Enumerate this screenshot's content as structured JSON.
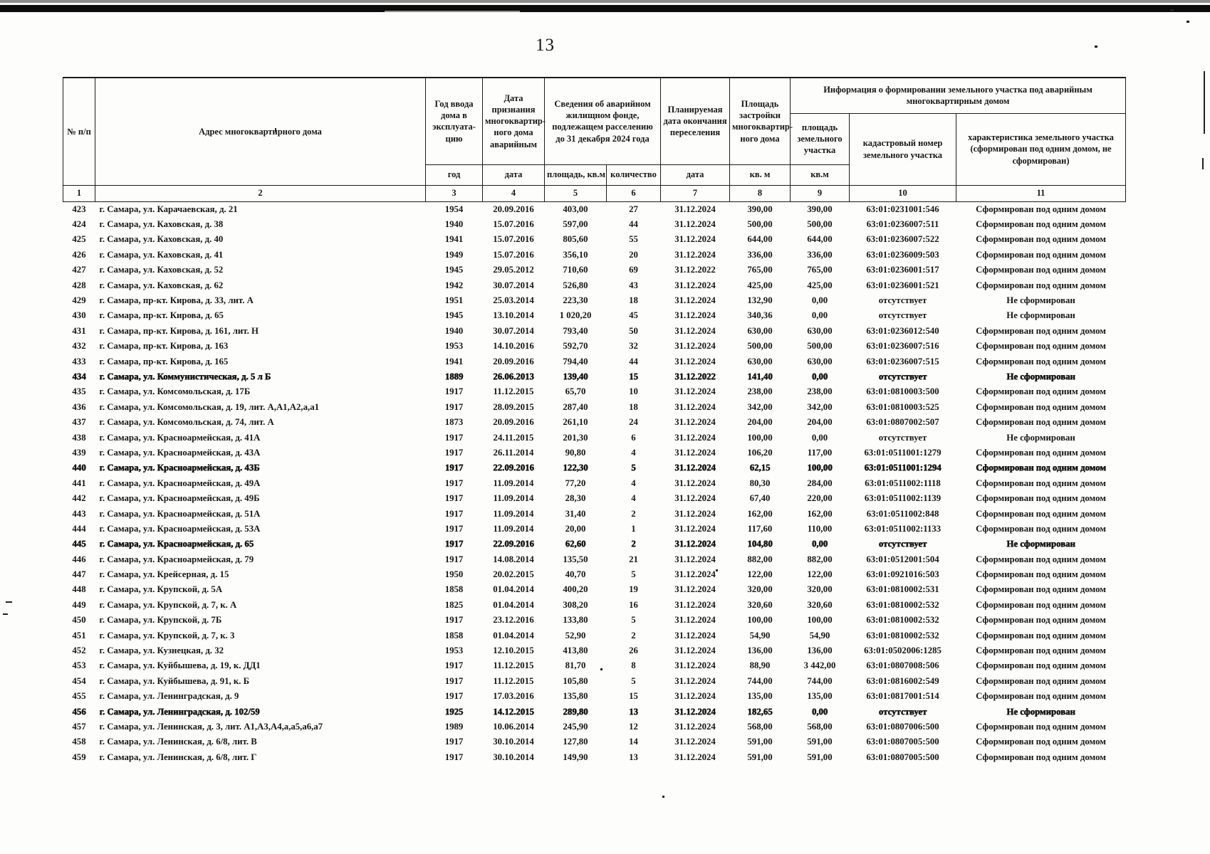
{
  "page": {
    "number": "13"
  },
  "table": {
    "header": {
      "col1": "№ п/п",
      "col2": "Адрес многоквартирного дома",
      "col3": "Год ввода дома в эксплуата-цию",
      "col4": "Дата признания многоквартир-ного дома аварийным",
      "group56": "Сведения об аварийном жилищном фонде, подлежащем расселению до 31 декабря 2024 года",
      "col7": "Планируемая дата окончания переселения",
      "col8": "Площадь застройки многоквартир-ного дома",
      "group911": "Информация о формировании земельного участка под аварийным многоквартирным домом",
      "col9": "площадь земельного участка",
      "col10": "кадастровый номер земельного участка",
      "col11": "характеристика земельного участка (сформирован под одним домом, не сформирован)",
      "units": {
        "col3": "год",
        "col4": "дата",
        "col5": "площадь, кв.м",
        "col6": "количество",
        "col7": "дата",
        "col8": "кв. м",
        "col9": "кв.м"
      },
      "numbers": [
        "1",
        "2",
        "3",
        "4",
        "5",
        "6",
        "7",
        "8",
        "9",
        "10",
        "11"
      ]
    },
    "column_names": [
      "row-number",
      "address",
      "year-built",
      "date-declared-emergency",
      "area-to-resettle",
      "unit-count",
      "resettlement-deadline",
      "building-footprint-area",
      "land-plot-area",
      "cadastral-number",
      "land-plot-status"
    ],
    "bold_rows": [
      "434",
      "440",
      "445",
      "456"
    ],
    "rows": [
      [
        "423",
        "г. Самара, ул. Карачаевская, д. 21",
        "1954",
        "20.09.2016",
        "403,00",
        "27",
        "31.12.2024",
        "390,00",
        "390,00",
        "63:01:0231001:546",
        "Сформирован под одним домом"
      ],
      [
        "424",
        "г. Самара, ул. Каховская, д. 38",
        "1940",
        "15.07.2016",
        "597,00",
        "44",
        "31.12.2024",
        "500,00",
        "500,00",
        "63:01:0236007:511",
        "Сформирован под одним домом"
      ],
      [
        "425",
        "г. Самара, ул. Каховская, д. 40",
        "1941",
        "15.07.2016",
        "805,60",
        "55",
        "31.12.2024",
        "644,00",
        "644,00",
        "63:01:0236007:522",
        "Сформирован под одним домом"
      ],
      [
        "426",
        "г. Самара, ул. Каховская, д. 41",
        "1949",
        "15.07.2016",
        "356,10",
        "20",
        "31.12.2024",
        "336,00",
        "336,00",
        "63:01:0236009:503",
        "Сформирован под одним домом"
      ],
      [
        "427",
        "г. Самара, ул. Каховская, д. 52",
        "1945",
        "29.05.2012",
        "710,60",
        "69",
        "31.12.2022",
        "765,00",
        "765,00",
        "63:01:0236001:517",
        "Сформирован под одним домом"
      ],
      [
        "428",
        "г. Самара, ул. Каховская, д. 62",
        "1942",
        "30.07.2014",
        "526,80",
        "43",
        "31.12.2024",
        "425,00",
        "425,00",
        "63:01:0236001:521",
        "Сформирован под одним домом"
      ],
      [
        "429",
        "г. Самара, пр-кт. Кирова, д. 33, лит. А",
        "1951",
        "25.03.2014",
        "223,30",
        "18",
        "31.12.2024",
        "132,90",
        "0,00",
        "отсутствует",
        "Не сформирован"
      ],
      [
        "430",
        "г. Самара, пр-кт. Кирова, д. 65",
        "1945",
        "13.10.2014",
        "1 020,20",
        "45",
        "31.12.2024",
        "340,36",
        "0,00",
        "отсутствует",
        "Не сформирован"
      ],
      [
        "431",
        "г. Самара, пр-кт. Кирова, д. 161, лит. Н",
        "1940",
        "30.07.2014",
        "793,40",
        "50",
        "31.12.2024",
        "630,00",
        "630,00",
        "63:01:0236012:540",
        "Сформирован под одним домом"
      ],
      [
        "432",
        "г. Самара, пр-кт. Кирова, д. 163",
        "1953",
        "14.10.2016",
        "592,70",
        "32",
        "31.12.2024",
        "500,00",
        "500,00",
        "63:01:0236007:516",
        "Сформирован под одним домом"
      ],
      [
        "433",
        "г. Самара, пр-кт. Кирова, д. 165",
        "1941",
        "20.09.2016",
        "794,40",
        "44",
        "31.12.2024",
        "630,00",
        "630,00",
        "63:01:0236007:515",
        "Сформирован под одним домом"
      ],
      [
        "434",
        "г. Самара, ул. Коммунистическая, д. 5 л Б",
        "1889",
        "26.06.2013",
        "139,40",
        "15",
        "31.12.2022",
        "141,40",
        "0,00",
        "отсутствует",
        "Не сформирован"
      ],
      [
        "435",
        "г. Самара, ул. Комсомольская, д. 17Б",
        "1917",
        "11.12.2015",
        "65,70",
        "10",
        "31.12.2024",
        "238,00",
        "238,00",
        "63:01:0810003:500",
        "Сформирован под одним домом"
      ],
      [
        "436",
        "г. Самара, ул. Комсомольская, д. 19, лит. А,А1,А2,а,а1",
        "1917",
        "28.09.2015",
        "287,40",
        "18",
        "31.12.2024",
        "342,00",
        "342,00",
        "63:01:0810003:525",
        "Сформирован под одним домом"
      ],
      [
        "437",
        "г. Самара, ул. Комсомольская, д. 74, лит. А",
        "1873",
        "20.09.2016",
        "261,10",
        "24",
        "31.12.2024",
        "204,00",
        "204,00",
        "63:01:0807002:507",
        "Сформирован под одним домом"
      ],
      [
        "438",
        "г. Самара, ул. Красноармейская, д. 41А",
        "1917",
        "24.11.2015",
        "201,30",
        "6",
        "31.12.2024",
        "100,00",
        "0,00",
        "отсутствует",
        "Не сформирован"
      ],
      [
        "439",
        "г. Самара, ул. Красноармейская, д. 43А",
        "1917",
        "26.11.2014",
        "90,80",
        "4",
        "31.12.2024",
        "106,20",
        "117,00",
        "63:01:0511001:1279",
        "Сформирован под одним домом"
      ],
      [
        "440",
        "г. Самара, ул. Красноармейская, д. 43Б",
        "1917",
        "22.09.2016",
        "122,30",
        "5",
        "31.12.2024",
        "62,15",
        "100,00",
        "63:01:0511001:1294",
        "Сформирован под одним домом"
      ],
      [
        "441",
        "г. Самара, ул. Красноармейская, д. 49А",
        "1917",
        "11.09.2014",
        "77,20",
        "4",
        "31.12.2024",
        "80,30",
        "284,00",
        "63:01:0511002:1118",
        "Сформирован под одним домом"
      ],
      [
        "442",
        "г. Самара, ул. Красноармейская, д. 49Б",
        "1917",
        "11.09.2014",
        "28,30",
        "4",
        "31.12.2024",
        "67,40",
        "220,00",
        "63:01:0511002:1139",
        "Сформирован под одним домом"
      ],
      [
        "443",
        "г. Самара, ул. Красноармейская, д. 51А",
        "1917",
        "11.09.2014",
        "31,40",
        "2",
        "31.12.2024",
        "162,00",
        "162,00",
        "63:01:0511002:848",
        "Сформирован под одним домом"
      ],
      [
        "444",
        "г. Самара, ул. Красноармейская, д. 53А",
        "1917",
        "11.09.2014",
        "20,00",
        "1",
        "31.12.2024",
        "117,60",
        "110,00",
        "63:01:0511002:1133",
        "Сформирован под одним домом"
      ],
      [
        "445",
        "г. Самара, ул. Красноармейская, д. 65",
        "1917",
        "22.09.2016",
        "62,60",
        "2",
        "31.12.2024",
        "104,80",
        "0,00",
        "отсутствует",
        "Не сформирован"
      ],
      [
        "446",
        "г. Самара, ул. Красноармейская, д. 79",
        "1917",
        "14.08.2014",
        "135,50",
        "21",
        "31.12.2024",
        "882,00",
        "882,00",
        "63:01:0512001:504",
        "Сформирован под одним домом"
      ],
      [
        "447",
        "г. Самара, ул. Крейсерная, д. 15",
        "1950",
        "20.02.2015",
        "40,70",
        "5",
        "31.12.2024",
        "122,00",
        "122,00",
        "63:01:0921016:503",
        "Сформирован под одним домом"
      ],
      [
        "448",
        "г. Самара, ул. Крупской, д. 5А",
        "1858",
        "01.04.2014",
        "400,20",
        "19",
        "31.12.2024",
        "320,00",
        "320,00",
        "63:01:0810002:531",
        "Сформирован под одним домом"
      ],
      [
        "449",
        "г. Самара, ул. Крупской, д. 7, к. А",
        "1825",
        "01.04.2014",
        "308,20",
        "16",
        "31.12.2024",
        "320,60",
        "320,60",
        "63:01:0810002:532",
        "Сформирован под одним домом"
      ],
      [
        "450",
        "г. Самара, ул. Крупской, д. 7Б",
        "1917",
        "23.12.2016",
        "133,80",
        "5",
        "31.12.2024",
        "100,00",
        "100,00",
        "63:01:0810002:532",
        "Сформирован под одним домом"
      ],
      [
        "451",
        "г. Самара, ул. Крупской, д. 7, к. 3",
        "1858",
        "01.04.2014",
        "52,90",
        "2",
        "31.12.2024",
        "54,90",
        "54,90",
        "63:01:0810002:532",
        "Сформирован под одним домом"
      ],
      [
        "452",
        "г. Самара, ул. Кузнецкая, д. 32",
        "1953",
        "12.10.2015",
        "413,80",
        "26",
        "31.12.2024",
        "136,00",
        "136,00",
        "63:01:0502006:1285",
        "Сформирован под одним домом"
      ],
      [
        "453",
        "г. Самара, ул. Куйбышева, д. 19, к. ДД1",
        "1917",
        "11.12.2015",
        "81,70",
        "8",
        "31.12.2024",
        "88,90",
        "3 442,00",
        "63:01:0807008:506",
        "Сформирован под одним домом"
      ],
      [
        "454",
        "г. Самара, ул. Куйбышева, д. 91, к. Б",
        "1917",
        "11.12.2015",
        "105,80",
        "5",
        "31.12.2024",
        "744,00",
        "744,00",
        "63:01:0816002:549",
        "Сформирован под одним домом"
      ],
      [
        "455",
        "г. Самара, ул. Ленинградская, д. 9",
        "1917",
        "17.03.2016",
        "135,80",
        "15",
        "31.12.2024",
        "135,00",
        "135,00",
        "63:01:0817001:514",
        "Сформирован под одним домом"
      ],
      [
        "456",
        "г. Самара, ул. Ленинградская, д. 102/59",
        "1925",
        "14.12.2015",
        "289,80",
        "13",
        "31.12.2024",
        "182,65",
        "0,00",
        "отсутствует",
        "Не сформирован"
      ],
      [
        "457",
        "г. Самара, ул. Ленинская, д. 3, лит. А1,А3,А4,а,а5,а6,а7",
        "1989",
        "10.06.2014",
        "245,90",
        "12",
        "31.12.2024",
        "568,00",
        "568,00",
        "63:01:0807006:500",
        "Сформирован под одним домом"
      ],
      [
        "458",
        "г. Самара, ул. Ленинская, д. 6/8, лит. В",
        "1917",
        "30.10.2014",
        "127,80",
        "14",
        "31.12.2024",
        "591,00",
        "591,00",
        "63:01:0807005:500",
        "Сформирован под одним домом"
      ],
      [
        "459",
        "г. Самара, ул. Ленинская, д. 6/8, лит. Г",
        "1917",
        "30.10.2014",
        "149,90",
        "13",
        "31.12.2024",
        "591,00",
        "591,00",
        "63:01:0807005:500",
        "Сформирован под одним домом"
      ]
    ]
  }
}
